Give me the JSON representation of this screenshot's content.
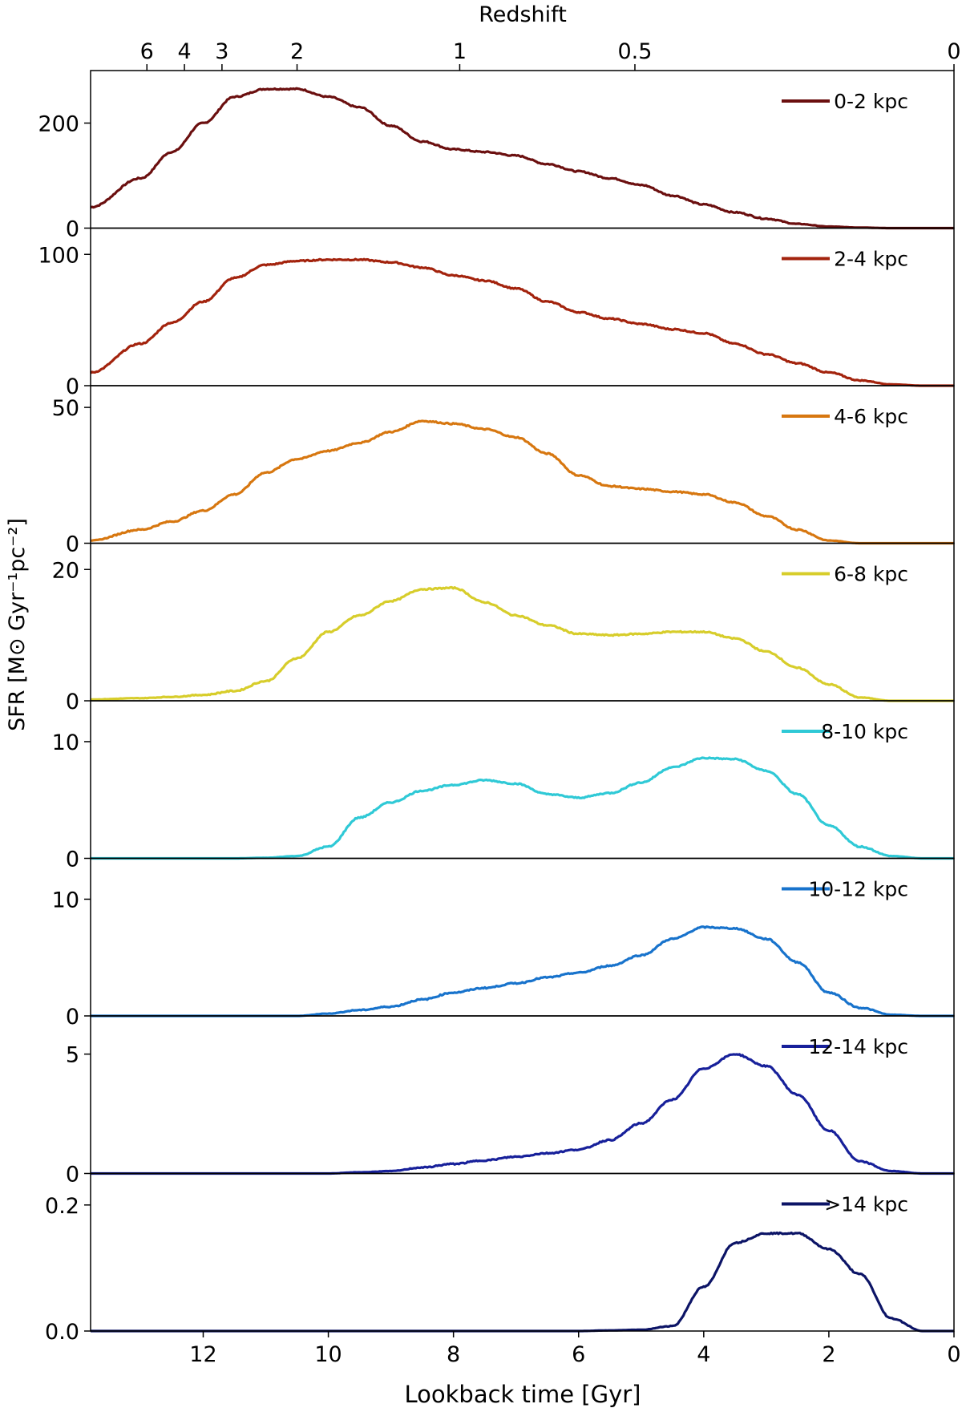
{
  "figure": {
    "top_axis_label": "Redshift",
    "x_axis_label": "Lookback time [Gyr]",
    "y_axis_label": "SFR [M⊙ Gyr⁻¹pc⁻²]"
  },
  "chart_data": {
    "type": "line",
    "layout": "8 vertically stacked panels sharing x axis",
    "xlabel": "Lookback time [Gyr]",
    "ylabel": "SFR [M⊙ Gyr⁻¹pc⁻²]",
    "xlim": [
      13.8,
      0
    ],
    "x_ticks": [
      12,
      10,
      8,
      6,
      4,
      2,
      0
    ],
    "top_axis": {
      "label": "Redshift",
      "ticks": [
        {
          "label": "6",
          "t": 12.9
        },
        {
          "label": "4",
          "t": 12.3
        },
        {
          "label": "3",
          "t": 11.7
        },
        {
          "label": "2",
          "t": 10.5
        },
        {
          "label": "1",
          "t": 7.9
        },
        {
          "label": "0.5",
          "t": 5.1
        },
        {
          "label": "0",
          "t": 0.0
        }
      ]
    },
    "x": [
      13.8,
      13.0,
      12.5,
      12.0,
      11.5,
      11.0,
      10.5,
      10.0,
      9.5,
      9.0,
      8.5,
      8.0,
      7.5,
      7.0,
      6.5,
      6.0,
      5.5,
      5.0,
      4.5,
      4.0,
      3.5,
      3.0,
      2.5,
      2.0,
      1.5,
      1.0,
      0.5,
      0.0
    ],
    "panels": [
      {
        "name": "0-2 kpc",
        "color": "#6b0f0f",
        "ylim": [
          0,
          300
        ],
        "yticks": [
          0,
          200
        ],
        "ytick_labels": [
          "0",
          "200"
        ],
        "values": [
          40,
          95,
          145,
          200,
          250,
          265,
          265,
          250,
          230,
          195,
          165,
          150,
          145,
          138,
          122,
          108,
          95,
          82,
          62,
          45,
          30,
          18,
          8,
          3,
          1,
          0,
          0,
          0
        ]
      },
      {
        "name": "2-4 kpc",
        "color": "#a3230d",
        "ylim": [
          0,
          120
        ],
        "yticks": [
          0,
          100
        ],
        "ytick_labels": [
          "0",
          "100"
        ],
        "values": [
          10,
          32,
          48,
          64,
          82,
          92,
          95,
          96,
          96,
          94,
          90,
          84,
          80,
          74,
          64,
          56,
          51,
          47,
          43,
          40,
          32,
          24,
          17,
          10,
          4,
          1,
          0,
          0
        ]
      },
      {
        "name": "4-6 kpc",
        "color": "#d77710",
        "ylim": [
          0,
          58
        ],
        "yticks": [
          0,
          50
        ],
        "ytick_labels": [
          "0",
          "50"
        ],
        "values": [
          1,
          5,
          8,
          12,
          18,
          26,
          31,
          34,
          37,
          41,
          45,
          44,
          42,
          39,
          33,
          25,
          21,
          20,
          19,
          18,
          15,
          10,
          5,
          1,
          0,
          0,
          0,
          0
        ]
      },
      {
        "name": "6-8 kpc",
        "color": "#d7cd2b",
        "ylim": [
          0,
          24
        ],
        "yticks": [
          0,
          20
        ],
        "ytick_labels": [
          "0",
          "20"
        ],
        "values": [
          0.2,
          0.4,
          0.6,
          0.9,
          1.5,
          3.0,
          6.5,
          10.5,
          13.0,
          15.2,
          17.0,
          17.2,
          15.0,
          13.0,
          11.5,
          10.2,
          10.0,
          10.2,
          10.5,
          10.5,
          9.5,
          7.5,
          5.0,
          2.5,
          0.5,
          0,
          0,
          0
        ]
      },
      {
        "name": "8-10 kpc",
        "color": "#2fc9d6",
        "ylim": [
          0,
          13.5
        ],
        "yticks": [
          0,
          10
        ],
        "ytick_labels": [
          "0",
          "10"
        ],
        "values": [
          0,
          0,
          0,
          0,
          0,
          0.05,
          0.2,
          1.0,
          3.5,
          4.8,
          5.8,
          6.3,
          6.7,
          6.4,
          5.5,
          5.2,
          5.6,
          6.5,
          7.8,
          8.6,
          8.5,
          7.5,
          5.5,
          2.8,
          1.0,
          0.2,
          0,
          0
        ]
      },
      {
        "name": "10-12 kpc",
        "color": "#1873cc",
        "ylim": [
          0,
          13.5
        ],
        "yticks": [
          0,
          10
        ],
        "ytick_labels": [
          "0",
          "10"
        ],
        "values": [
          0,
          0,
          0,
          0,
          0,
          0,
          0,
          0.2,
          0.5,
          0.8,
          1.4,
          2.0,
          2.4,
          2.8,
          3.3,
          3.7,
          4.3,
          5.2,
          6.6,
          7.6,
          7.5,
          6.6,
          4.6,
          2.0,
          0.7,
          0.1,
          0,
          0
        ]
      },
      {
        "name": "12-14 kpc",
        "color": "#17209a",
        "ylim": [
          0,
          6.6
        ],
        "yticks": [
          0,
          5
        ],
        "ytick_labels": [
          "0",
          "5"
        ],
        "values": [
          0,
          0,
          0,
          0,
          0,
          0,
          0,
          0,
          0.05,
          0.1,
          0.25,
          0.4,
          0.55,
          0.7,
          0.85,
          1.0,
          1.4,
          2.1,
          3.1,
          4.4,
          5.0,
          4.5,
          3.3,
          1.8,
          0.5,
          0.1,
          0,
          0
        ]
      },
      {
        "name": ">14 kpc",
        "color": "#0c1466",
        "ylim": [
          0,
          0.25
        ],
        "yticks": [
          0.0,
          0.2
        ],
        "ytick_labels": [
          "0.0",
          "0.2"
        ],
        "values": [
          0,
          0,
          0,
          0,
          0,
          0,
          0,
          0,
          0,
          0,
          0,
          0,
          0,
          0,
          0,
          0,
          0.001,
          0.002,
          0.008,
          0.07,
          0.14,
          0.155,
          0.155,
          0.13,
          0.09,
          0.02,
          0,
          0
        ]
      }
    ]
  }
}
